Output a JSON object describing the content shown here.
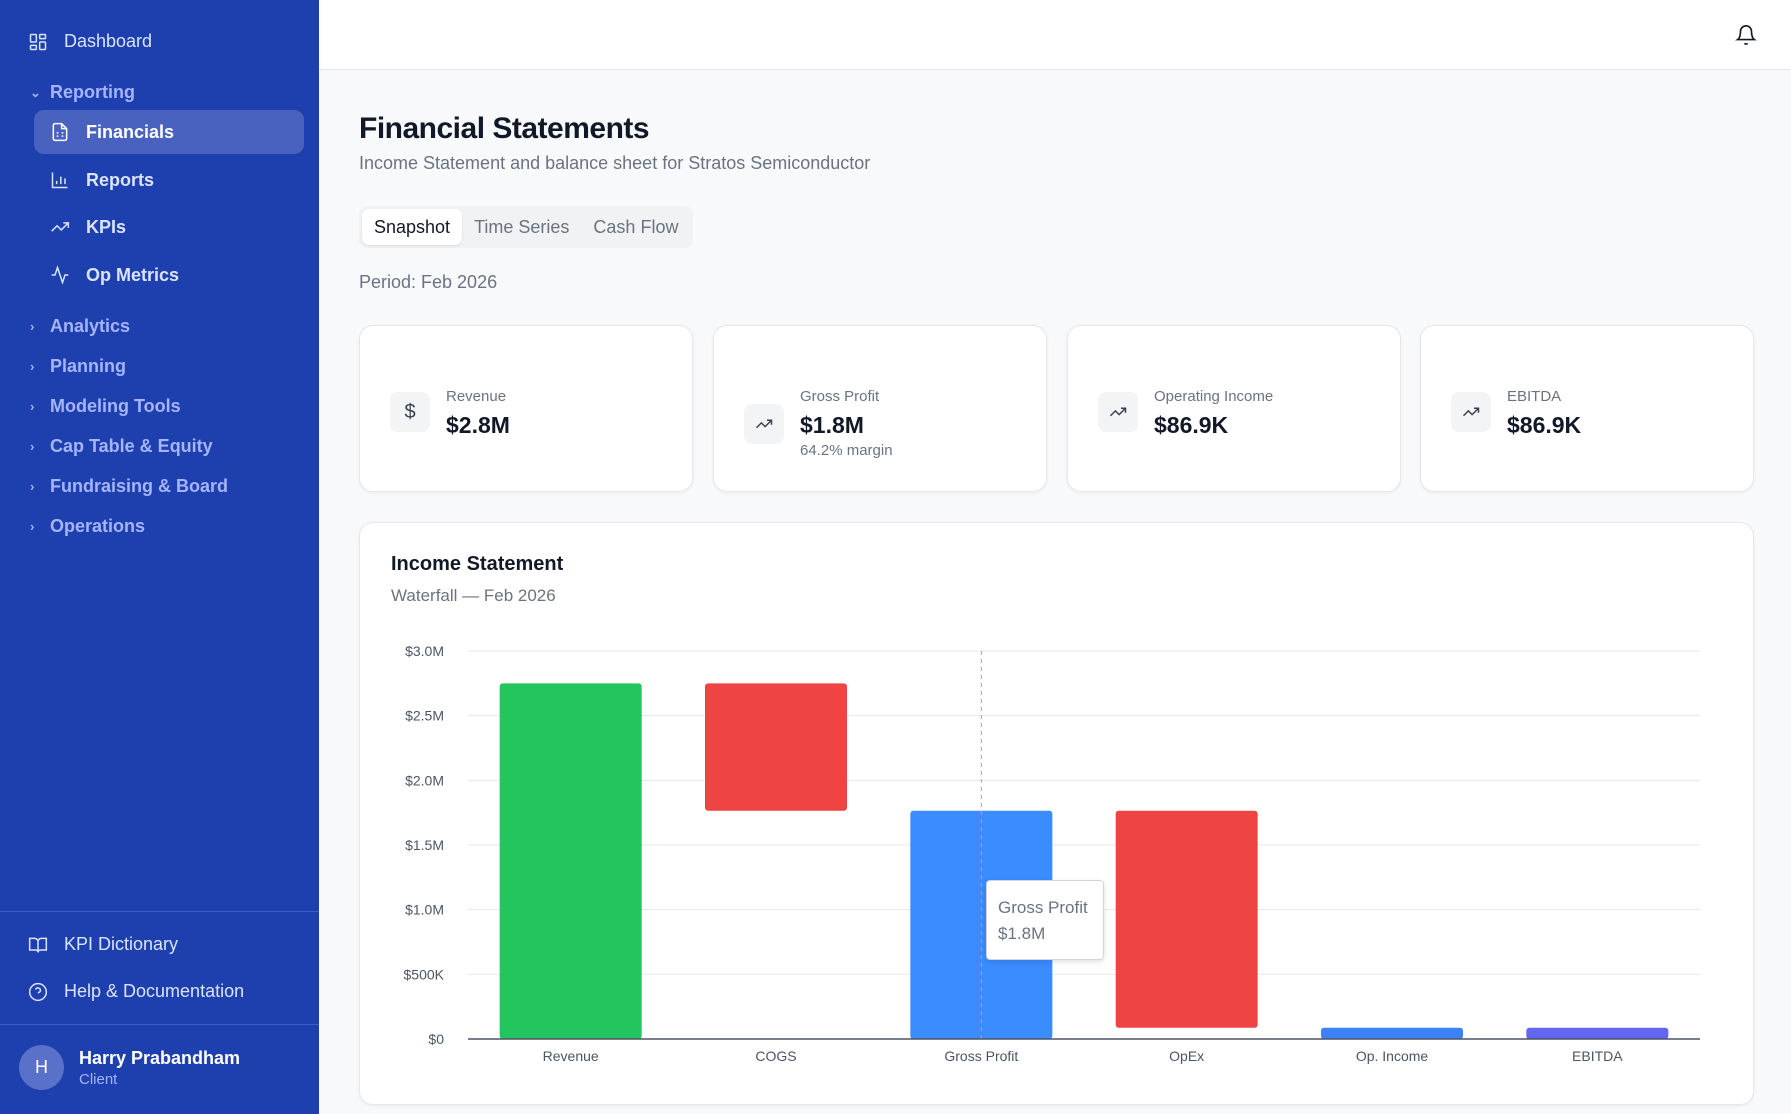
{
  "sidebar": {
    "dashboard": "Dashboard",
    "reporting": "Reporting",
    "reporting_items": [
      {
        "label": "Financials",
        "icon": "file-spreadsheet-icon"
      },
      {
        "label": "Reports",
        "icon": "bar-chart-icon"
      },
      {
        "label": "KPIs",
        "icon": "trending-up-icon"
      },
      {
        "label": "Op Metrics",
        "icon": "activity-icon"
      }
    ],
    "groups": [
      "Analytics",
      "Planning",
      "Modeling Tools",
      "Cap Table & Equity",
      "Fundraising & Board",
      "Operations"
    ],
    "kpi_dictionary": "KPI Dictionary",
    "help": "Help & Documentation",
    "user": {
      "initial": "H",
      "name": "Harry Prabandham",
      "role": "Client"
    }
  },
  "page": {
    "title": "Financial Statements",
    "subtitle": "Income Statement and balance sheet for Stratos Semiconductor",
    "tabs": [
      "Snapshot",
      "Time Series",
      "Cash Flow"
    ],
    "active_tab": "Snapshot",
    "period": "Period: Feb 2026"
  },
  "kpis": [
    {
      "label": "Revenue",
      "value": "$2.8M",
      "note": "",
      "icon": "dollar-icon"
    },
    {
      "label": "Gross Profit",
      "value": "$1.8M",
      "note": "64.2% margin",
      "icon": "trending-up-icon"
    },
    {
      "label": "Operating Income",
      "value": "$86.9K",
      "note": "",
      "icon": "trending-up-icon"
    },
    {
      "label": "EBITDA",
      "value": "$86.9K",
      "note": "",
      "icon": "trending-up-icon"
    }
  ],
  "chart_data": {
    "type": "bar",
    "title": "Income Statement",
    "subtitle": "Waterfall — Feb 2026",
    "categories": [
      "Revenue",
      "COGS",
      "Gross Profit",
      "OpEx",
      "Op. Income",
      "EBITDA"
    ],
    "ranges": [
      [
        0,
        2.75
      ],
      [
        1.765,
        2.75
      ],
      [
        0,
        1.765
      ],
      [
        0.0869,
        1.765
      ],
      [
        0,
        0.0869
      ],
      [
        0,
        0.0869
      ]
    ],
    "colors": [
      "#22c55e",
      "#ef4444",
      "#3b8cff",
      "#ef4444",
      "#3b82f6",
      "#6366f1"
    ],
    "unit": "$M",
    "ylim": [
      0,
      3.0
    ],
    "yticks": [
      0,
      0.5,
      1.0,
      1.5,
      2.0,
      2.5,
      3.0
    ],
    "ytick_labels": [
      "$0",
      "$500K",
      "$1.0M",
      "$1.5M",
      "$2.0M",
      "$2.5M",
      "$3.0M"
    ],
    "grid": true,
    "tooltip": {
      "label": "Gross Profit",
      "value": "$1.8M"
    }
  }
}
